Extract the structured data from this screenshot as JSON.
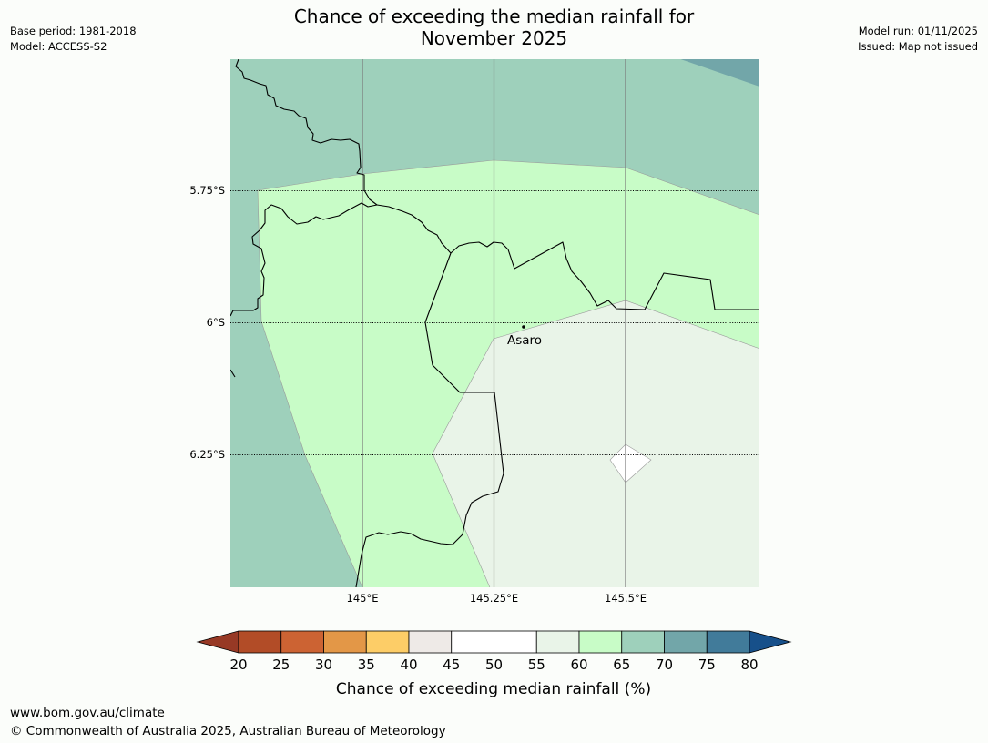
{
  "header": {
    "title_line1": "Chance of exceeding the median rainfall for",
    "title_line2": "November 2025",
    "base_period": "Base period: 1981-2018",
    "model": "Model: ACCESS-S2",
    "model_run": "Model run: 01/11/2025",
    "issued": "Issued: Map not issued"
  },
  "map": {
    "latitude_labels": [
      "5.75°S",
      "6°S",
      "6.25°S"
    ],
    "longitude_labels": [
      "145°E",
      "145.25°E",
      "145.5°E"
    ],
    "place": {
      "name": "Asaro"
    },
    "colors": {
      "p70": "#9ed0bb",
      "p75": "#72a6a9",
      "p65": "#c8fcc7",
      "p55": "#e9f4e8",
      "p50": "#ffffff"
    }
  },
  "legend": {
    "ticks": [
      "20",
      "25",
      "30",
      "35",
      "40",
      "45",
      "50",
      "55",
      "60",
      "65",
      "70",
      "75",
      "80"
    ],
    "colors": [
      "#973925",
      "#b24c27",
      "#cc6333",
      "#e39747",
      "#fdcd67",
      "#eeeae7",
      "#ffffff",
      "#ffffff",
      "#e9f4e8",
      "#c8fcc7",
      "#9ed0bb",
      "#72a6a9",
      "#417b9a",
      "#17508a"
    ],
    "label": "Chance of exceeding median rainfall (%)"
  },
  "footer": {
    "url": "www.bom.gov.au/climate",
    "copyright": "© Commonwealth of Australia 2025, Australian Bureau of Meteorology"
  }
}
